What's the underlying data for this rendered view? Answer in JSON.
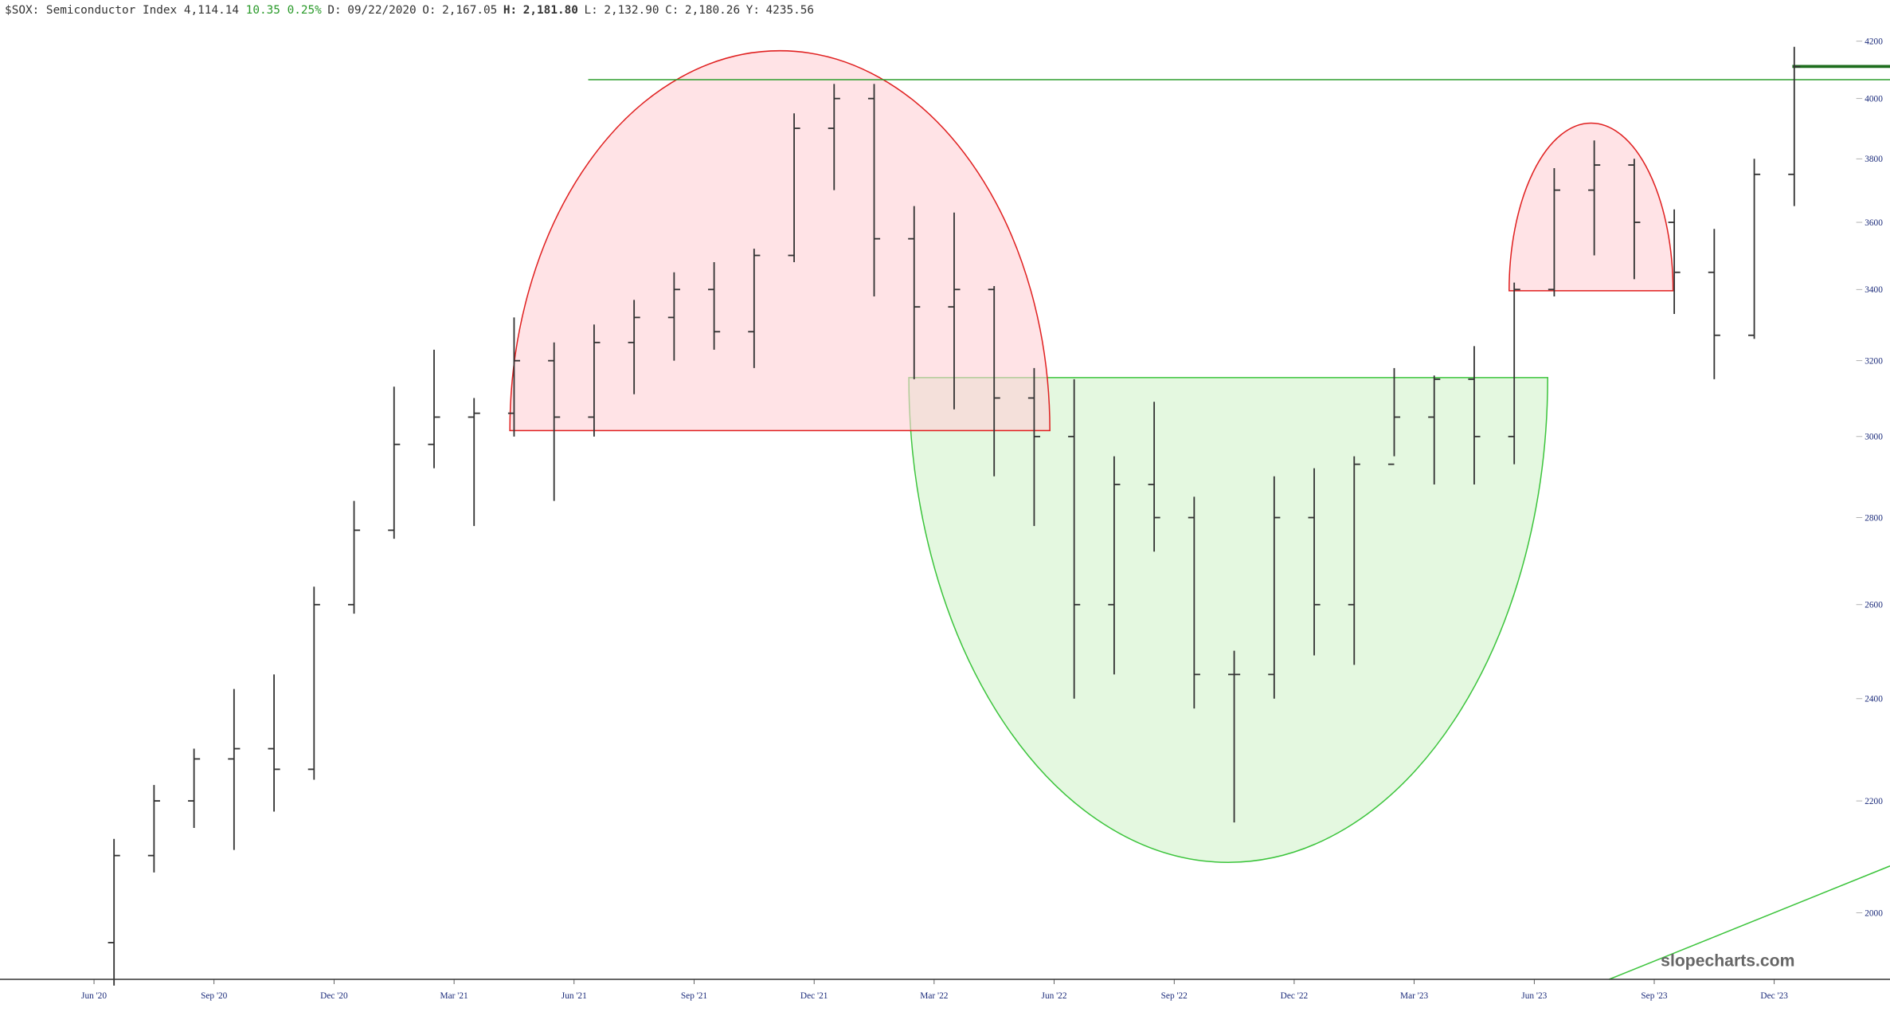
{
  "chart_data": {
    "type": "ohlc",
    "header": {
      "symbol": "$SOX:",
      "name": "Semiconductor Index",
      "last": "4,114.14",
      "change": "10.35",
      "change_pct": "0.25%",
      "items": [
        {
          "label": "D:",
          "value": "09/22/2020"
        },
        {
          "label": "O:",
          "value": "2,167.05"
        },
        {
          "label": "H:",
          "value": "2,181.80"
        },
        {
          "label": "L:",
          "value": "2,132.90"
        },
        {
          "label": "C:",
          "value": "2,180.26"
        },
        {
          "label": "Y:",
          "value": "4235.56"
        }
      ]
    },
    "watermark": "slopecharts.com",
    "categories": [
      "Jun '20",
      null,
      null,
      "Sep '20",
      null,
      null,
      "Dec '20",
      null,
      null,
      "Mar '21",
      null,
      null,
      "Jun '21",
      null,
      null,
      "Sep '21",
      null,
      null,
      "Dec '21",
      null,
      null,
      "Mar '22",
      null,
      null,
      "Jun '22",
      null,
      null,
      "Sep '22",
      null,
      null,
      "Dec '22",
      null,
      null,
      "Mar '23",
      null,
      null,
      "Jun '23",
      null,
      null,
      "Sep '23",
      null,
      null,
      "Dec '23"
    ],
    "series": [
      {
        "name": "$SOX",
        "color": "#333333",
        "open": [
          1950,
          2100,
          2200,
          2280,
          2300,
          2260,
          2600,
          2770,
          2980,
          3050,
          3060,
          3200,
          3050,
          3250,
          3320,
          3400,
          3280,
          3500,
          3900,
          4000,
          3550,
          3350,
          3400,
          3100,
          3000,
          2600,
          2880,
          2800,
          2450,
          2450,
          2800,
          2600,
          2930,
          3050,
          3150,
          3000,
          3400,
          3700,
          3780,
          3600,
          3450,
          3270,
          3750
        ],
        "high": [
          2130,
          2230,
          2300,
          2420,
          2450,
          2640,
          2840,
          3130,
          3230,
          3100,
          3320,
          3250,
          3300,
          3370,
          3450,
          3480,
          3520,
          3950,
          4050,
          4050,
          3650,
          3630,
          3410,
          3180,
          3150,
          2950,
          3090,
          2850,
          2500,
          2900,
          2920,
          2950,
          3180,
          3160,
          3240,
          3420,
          3770,
          3860,
          3800,
          3640,
          3580,
          3800,
          4180
        ],
        "low": [
          1880,
          2070,
          2150,
          2110,
          2180,
          2240,
          2580,
          2750,
          2920,
          2780,
          3000,
          2840,
          3000,
          3110,
          3200,
          3230,
          3180,
          3480,
          3700,
          3380,
          3150,
          3070,
          2900,
          2780,
          2400,
          2450,
          2720,
          2380,
          2160,
          2400,
          2490,
          2470,
          2950,
          2880,
          2880,
          2930,
          3380,
          3500,
          3430,
          3330,
          3150,
          3260,
          3650
        ],
        "close": [
          2100,
          2200,
          2280,
          2300,
          2260,
          2600,
          2770,
          2980,
          3050,
          3060,
          3200,
          3050,
          3250,
          3320,
          3400,
          3280,
          3500,
          3900,
          4000,
          3550,
          3350,
          3400,
          3100,
          3000,
          2600,
          2880,
          2800,
          2450,
          2450,
          2800,
          2600,
          2930,
          3050,
          3150,
          3000,
          3400,
          3700,
          3780,
          3600,
          3450,
          3270,
          3750,
          4110
        ]
      }
    ],
    "ylim": [
      1890,
      4270
    ],
    "yticks": [
      2000,
      2200,
      2400,
      2600,
      2800,
      3000,
      3200,
      3400,
      3600,
      3800,
      4000,
      4200
    ],
    "log_scale": true
  }
}
